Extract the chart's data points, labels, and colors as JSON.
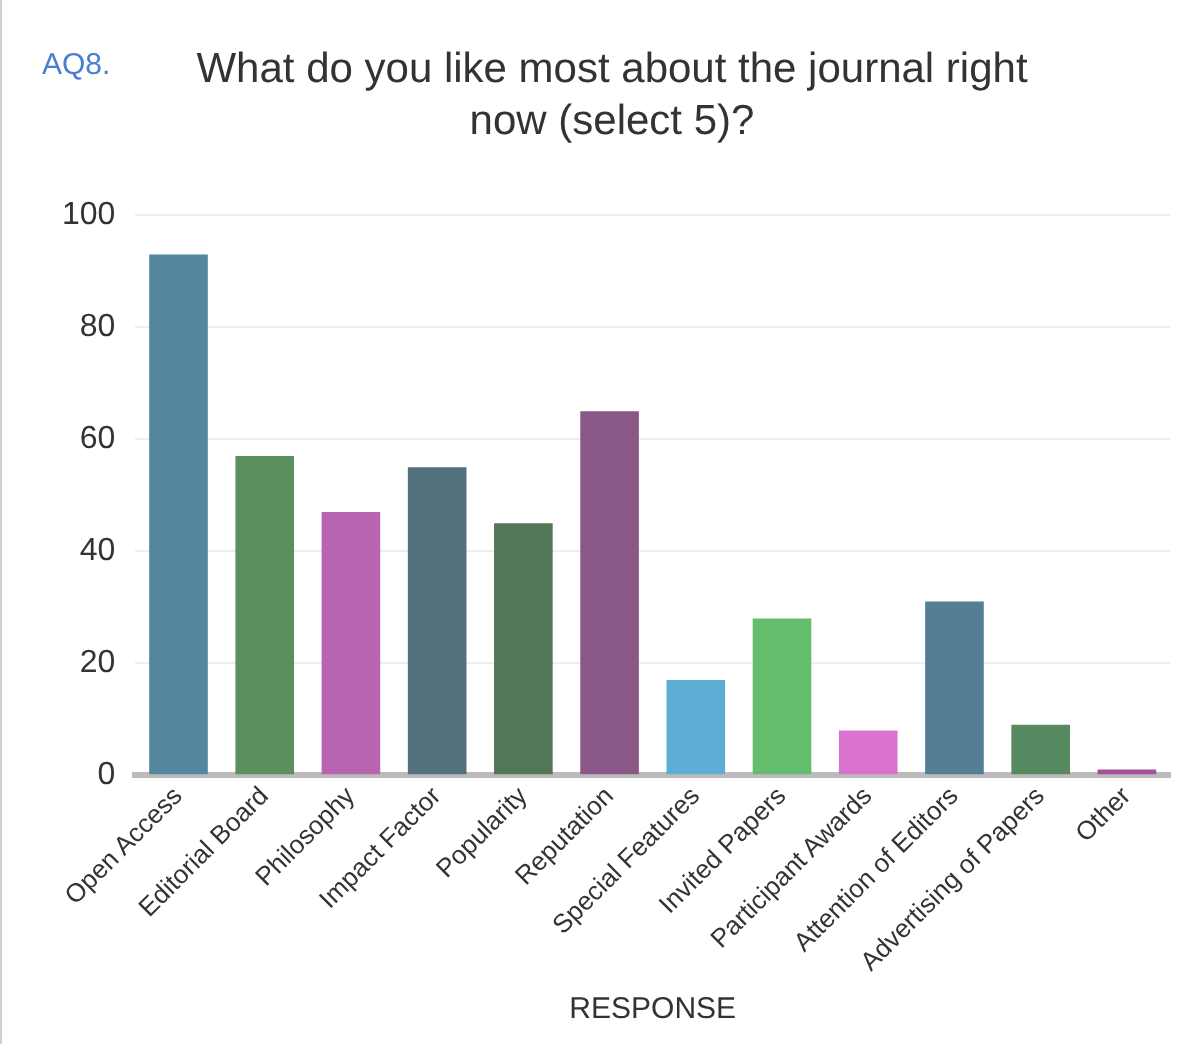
{
  "chart_data": {
    "type": "bar",
    "title": "What do you like most about the journal right now (select 5)?",
    "xlabel": "RESPONSE",
    "annotations": [
      "AQ8."
    ],
    "categories": [
      "Open Access",
      "Editorial Board",
      "Philosophy",
      "Impact Factor",
      "Popularity",
      "Reputation",
      "Special Features",
      "Invited Papers",
      "Participant Awards",
      "Attention of Editors",
      "Advertising of Papers",
      "Other"
    ],
    "values": [
      93,
      57,
      47,
      55,
      45,
      65,
      17,
      28,
      8,
      31,
      9,
      1
    ],
    "colors": [
      "#53879f",
      "#5b8f5e",
      "#b964b0",
      "#52717d",
      "#527656",
      "#8a5886",
      "#5eadd4",
      "#63bd6d",
      "#da72cf",
      "#537e95",
      "#578a60",
      "#a2509c"
    ],
    "ylim": [
      0,
      100
    ],
    "yticks": [
      0,
      20,
      40,
      60,
      80,
      100
    ],
    "grid": "y",
    "legend": false
  }
}
